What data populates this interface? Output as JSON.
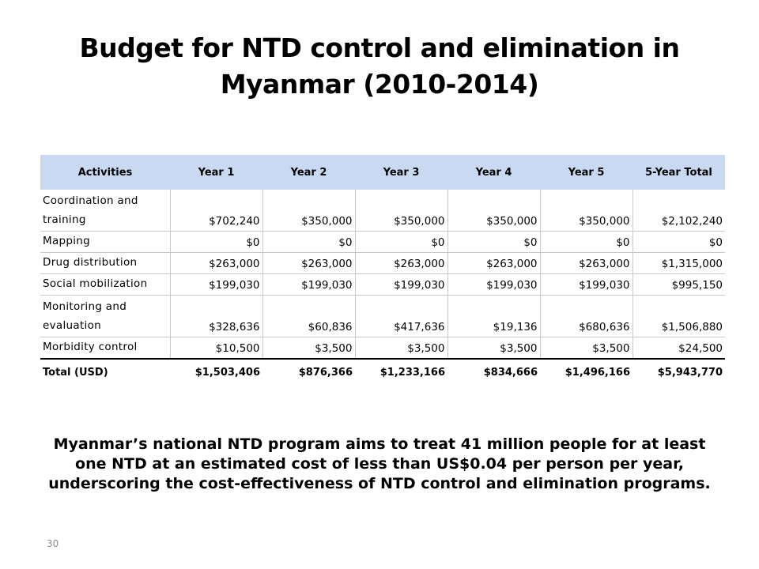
{
  "slide": {
    "title": "Budget for NTD control and elimination in Myanmar (2010-2014)",
    "summary": "Myanmar’s national NTD program aims to treat 41 million people for at least one NTD at an estimated cost of less than US$0.04 per person per year, underscoring the cost-effectiveness of NTD control and elimination programs.",
    "page_number": "30"
  },
  "table": {
    "headers": [
      "Activities",
      "Year 1",
      "Year 2",
      "Year 3",
      "Year 4",
      "Year 5",
      "5-Year Total"
    ],
    "rows": [
      {
        "activity": "Coordination and training",
        "values": [
          "$702,240",
          "$350,000",
          "$350,000",
          "$350,000",
          "$350,000",
          "$2,102,240"
        ]
      },
      {
        "activity": "Mapping",
        "values": [
          "$0",
          "$0",
          "$0",
          "$0",
          "$0",
          "$0"
        ]
      },
      {
        "activity": "Drug distribution",
        "values": [
          "$263,000",
          "$263,000",
          "$263,000",
          "$263,000",
          "$263,000",
          "$1,315,000"
        ]
      },
      {
        "activity": "Social mobilization",
        "values": [
          "$199,030",
          "$199,030",
          "$199,030",
          "$199,030",
          "$199,030",
          "$995,150"
        ]
      },
      {
        "activity": "Monitoring and evaluation",
        "values": [
          "$328,636",
          "$60,836",
          "$417,636",
          "$19,136",
          "$680,636",
          "$1,506,880"
        ]
      },
      {
        "activity": "Morbidity control",
        "values": [
          "$10,500",
          "$3,500",
          "$3,500",
          "$3,500",
          "$3,500",
          "$24,500"
        ]
      }
    ],
    "total": {
      "label": "Total (USD)",
      "values": [
        "$1,503,406",
        "$876,366",
        "$1,233,166",
        "$834,666",
        "$1,496,166",
        "$5,943,770"
      ]
    }
  }
}
